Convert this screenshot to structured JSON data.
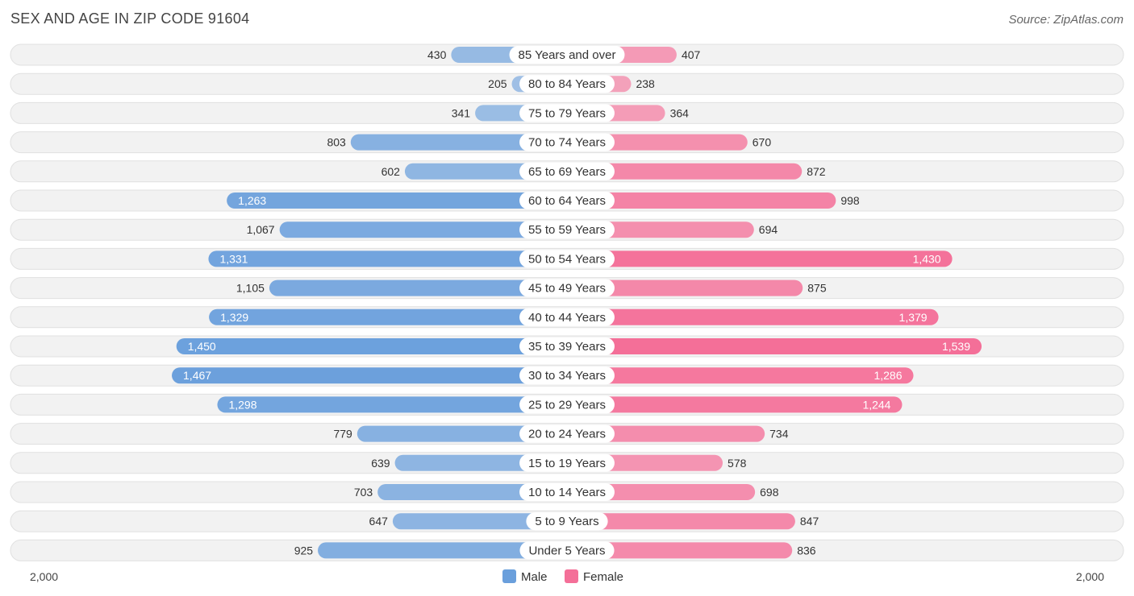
{
  "chart_data": {
    "type": "bar",
    "orientation": "horizontal-diverging",
    "title": "SEX AND AGE IN ZIP CODE 91604",
    "source": "Source: ZipAtlas.com",
    "categories": [
      "85 Years and over",
      "80 to 84 Years",
      "75 to 79 Years",
      "70 to 74 Years",
      "65 to 69 Years",
      "60 to 64 Years",
      "55 to 59 Years",
      "50 to 54 Years",
      "45 to 49 Years",
      "40 to 44 Years",
      "35 to 39 Years",
      "30 to 34 Years",
      "25 to 29 Years",
      "20 to 24 Years",
      "15 to 19 Years",
      "10 to 14 Years",
      "5 to 9 Years",
      "Under 5 Years"
    ],
    "series": [
      {
        "name": "Male",
        "color": "#6a9fdc",
        "values": [
          430,
          205,
          341,
          803,
          602,
          1263,
          1067,
          1331,
          1105,
          1329,
          1450,
          1467,
          1298,
          779,
          639,
          703,
          647,
          925
        ],
        "labels": [
          "430",
          "205",
          "341",
          "803",
          "602",
          "1,263",
          "1,067",
          "1,331",
          "1,105",
          "1,329",
          "1,450",
          "1,467",
          "1,298",
          "779",
          "639",
          "703",
          "647",
          "925"
        ]
      },
      {
        "name": "Female",
        "color": "#f46f98",
        "values": [
          407,
          238,
          364,
          670,
          872,
          998,
          694,
          1430,
          875,
          1379,
          1539,
          1286,
          1244,
          734,
          578,
          698,
          847,
          836
        ],
        "labels": [
          "407",
          "238",
          "364",
          "670",
          "872",
          "998",
          "694",
          "1,430",
          "875",
          "1,379",
          "1,539",
          "1,286",
          "1,244",
          "734",
          "578",
          "698",
          "847",
          "836"
        ]
      }
    ],
    "axis_left_label": "2,000",
    "axis_right_label": "2,000",
    "xlim": [
      0,
      2000
    ],
    "legend_position": "bottom-center",
    "grid": false
  }
}
